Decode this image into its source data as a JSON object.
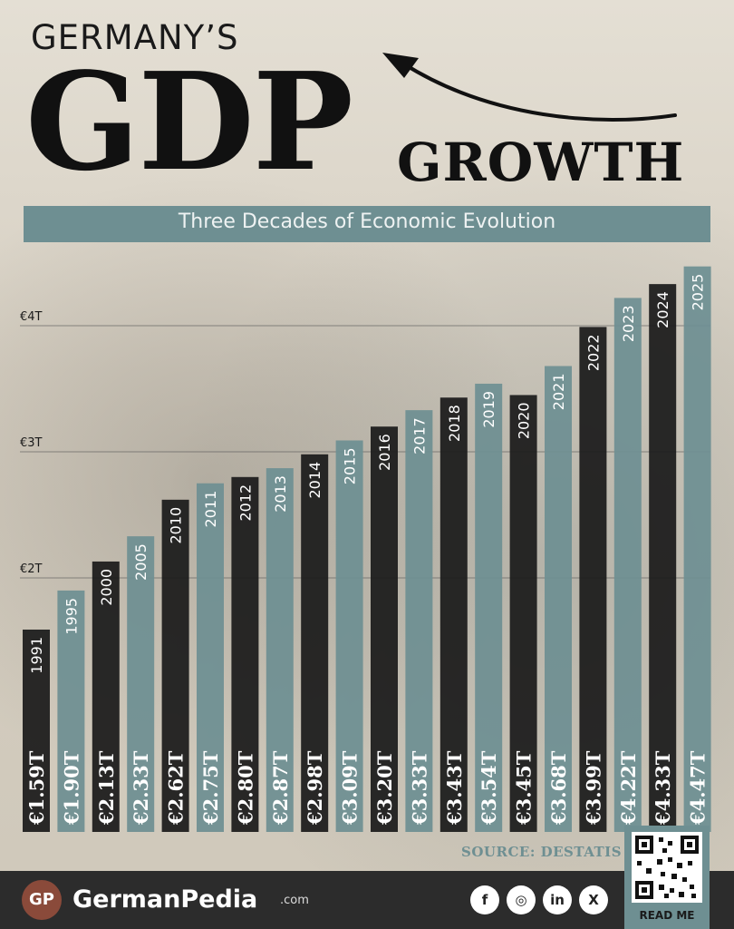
{
  "header": {
    "title_small": "GERMANY’S",
    "title_big": "GDP",
    "title_growth": "GROWTH",
    "subtitle": "Three Decades of Economic Evolution"
  },
  "chart_data": {
    "type": "bar",
    "categories": [
      "1991",
      "1995",
      "2000",
      "2005",
      "2010",
      "2011",
      "2012",
      "2013",
      "2014",
      "2015",
      "2016",
      "2017",
      "2018",
      "2019",
      "2020",
      "2021",
      "2022",
      "2023",
      "2024",
      "2025"
    ],
    "values": [
      1.59,
      1.9,
      2.13,
      2.33,
      2.62,
      2.75,
      2.8,
      2.87,
      2.98,
      3.09,
      3.2,
      3.33,
      3.43,
      3.54,
      3.45,
      3.68,
      3.99,
      4.22,
      4.33,
      4.47
    ],
    "value_labels": [
      "€1.59T",
      "€1.90T",
      "€2.13T",
      "€2.33T",
      "€2.62T",
      "€2.75T",
      "€2.80T",
      "€2.87T",
      "€2.98T",
      "€3.09T",
      "€3.20T",
      "€3.33T",
      "€3.43T",
      "€3.54T",
      "€3.45T",
      "€3.68T",
      "€3.99T",
      "€4.22T",
      "€4.33T",
      "€4.47T"
    ],
    "y_ticks": [
      2,
      3,
      4
    ],
    "y_tick_labels": [
      "€2T",
      "€3T",
      "€4T"
    ],
    "title": "",
    "xlabel": "",
    "ylabel": "",
    "grid": true
  },
  "colors": {
    "bar_dark": "#1b1b1b",
    "bar_teal": "#6e8f92",
    "accent": "#6e8f92"
  },
  "source": "SOURCE: DESTATIS",
  "footer": {
    "logo": "GP",
    "brand": "GermanPedia",
    "brand_suffix": ".com",
    "social": [
      {
        "icon": "facebook-icon",
        "glyph": "f"
      },
      {
        "icon": "instagram-icon",
        "glyph": "◎"
      },
      {
        "icon": "linkedin-icon",
        "glyph": "in"
      },
      {
        "icon": "x-icon",
        "glyph": "X"
      }
    ],
    "read_me": "READ ME"
  }
}
